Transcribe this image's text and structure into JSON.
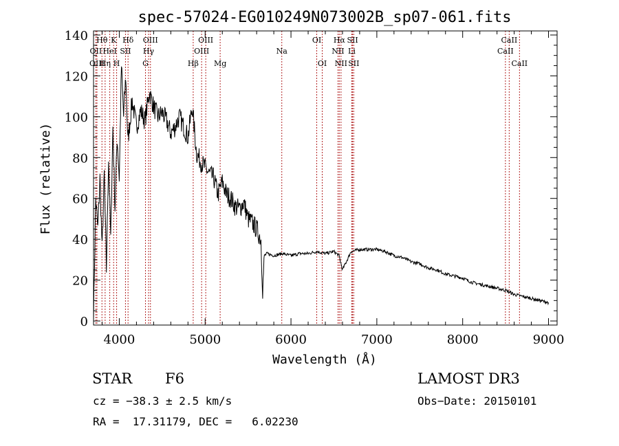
{
  "chart_data": {
    "type": "line",
    "title": "spec-57024-EG010249N073002B_sp07-061.fits",
    "xlabel": "Wavelength (Å)",
    "ylabel": "Flux (relative)",
    "xlim": [
      3700,
      9100
    ],
    "ylim": [
      -2,
      142
    ],
    "xticks": [
      4000,
      5000,
      6000,
      7000,
      8000,
      9000
    ],
    "yticks": [
      0,
      20,
      40,
      60,
      80,
      100,
      120,
      140
    ],
    "series": [
      {
        "name": "spectrum",
        "x": [
          3700,
          3725,
          3750,
          3775,
          3800,
          3825,
          3850,
          3875,
          3900,
          3925,
          3950,
          3975,
          4000,
          4025,
          4050,
          4075,
          4100,
          4150,
          4200,
          4250,
          4300,
          4350,
          4400,
          4450,
          4500,
          4550,
          4600,
          4650,
          4700,
          4750,
          4800,
          4850,
          4900,
          4950,
          5000,
          5050,
          5100,
          5150,
          5200,
          5250,
          5300,
          5350,
          5400,
          5450,
          5500,
          5550,
          5600,
          5650,
          5670,
          5690,
          5720,
          5800,
          5900,
          6000,
          6100,
          6200,
          6300,
          6400,
          6500,
          6560,
          6600,
          6700,
          6800,
          6900,
          7000,
          7100,
          7200,
          7300,
          7400,
          7500,
          7600,
          7700,
          7800,
          7900,
          8000,
          8100,
          8200,
          8300,
          8400,
          8500,
          8600,
          8700,
          8800,
          8900,
          9000
        ],
        "values": [
          0,
          60,
          45,
          70,
          35,
          72,
          25,
          80,
          40,
          95,
          55,
          90,
          70,
          125,
          100,
          120,
          88,
          108,
          95,
          103,
          98,
          112,
          105,
          100,
          102,
          98,
          92,
          95,
          100,
          95,
          90,
          105,
          82,
          78,
          75,
          72,
          70,
          62,
          68,
          62,
          60,
          56,
          55,
          58,
          50,
          48,
          45,
          40,
          15,
          32,
          33,
          32,
          33,
          32,
          33,
          33,
          34,
          33,
          34,
          32,
          25,
          34,
          35,
          35,
          35,
          34,
          32,
          31,
          29,
          28,
          26,
          25,
          23,
          22,
          21,
          19,
          18,
          17,
          16,
          15,
          13,
          12,
          11,
          10,
          9
        ]
      }
    ],
    "lines": [
      {
        "label": "Hθ",
        "x": 3798,
        "row": 1
      },
      {
        "label": "OII",
        "x": 3727,
        "row": 2
      },
      {
        "label": "OIII",
        "x": 3740,
        "row": 3
      },
      {
        "label": "K",
        "x": 3934,
        "row": 1
      },
      {
        "label": "HeI",
        "x": 3889,
        "row": 2
      },
      {
        "label": "Hη",
        "x": 3835,
        "row": 3
      },
      {
        "label": "SII",
        "x": 4072,
        "row": 2
      },
      {
        "label": "H",
        "x": 3969,
        "row": 3
      },
      {
        "label": "Hδ",
        "x": 4102,
        "row": 1
      },
      {
        "label": "OIII",
        "x": 4363,
        "row": 1
      },
      {
        "label": "Hγ",
        "x": 4341,
        "row": 2
      },
      {
        "label": "G",
        "x": 4305,
        "row": 3
      },
      {
        "label": "Hβ",
        "x": 4861,
        "row": 3
      },
      {
        "label": "OIII",
        "x": 5007,
        "row": 1
      },
      {
        "label": "OIII",
        "x": 4959,
        "row": 2
      },
      {
        "label": "Mg",
        "x": 5175,
        "row": 3
      },
      {
        "label": "Na",
        "x": 5893,
        "row": 2
      },
      {
        "label": "OI",
        "x": 6300,
        "row": 1
      },
      {
        "label": "OI",
        "x": 6364,
        "row": 3
      },
      {
        "label": "Hα",
        "x": 6563,
        "row": 1
      },
      {
        "label": "NII",
        "x": 6548,
        "row": 2
      },
      {
        "label": "NII",
        "x": 6583,
        "row": 3
      },
      {
        "label": "SII",
        "x": 6717,
        "row": 1
      },
      {
        "label": "Li",
        "x": 6708,
        "row": 2
      },
      {
        "label": "SII",
        "x": 6731,
        "row": 3
      },
      {
        "label": "CaII",
        "x": 8542,
        "row": 1
      },
      {
        "label": "CaII",
        "x": 8498,
        "row": 2
      },
      {
        "label": "CaII",
        "x": 8662,
        "row": 3
      }
    ]
  },
  "info": {
    "object_type": "STAR",
    "spectral_class": "F6",
    "survey": "LAMOST DR3",
    "cz": "cz = −38.3 ± 2.5 km/s",
    "obs_date": "Obs−Date: 20150101",
    "radec": "RA =  17.31179, DEC =   6.02230"
  }
}
